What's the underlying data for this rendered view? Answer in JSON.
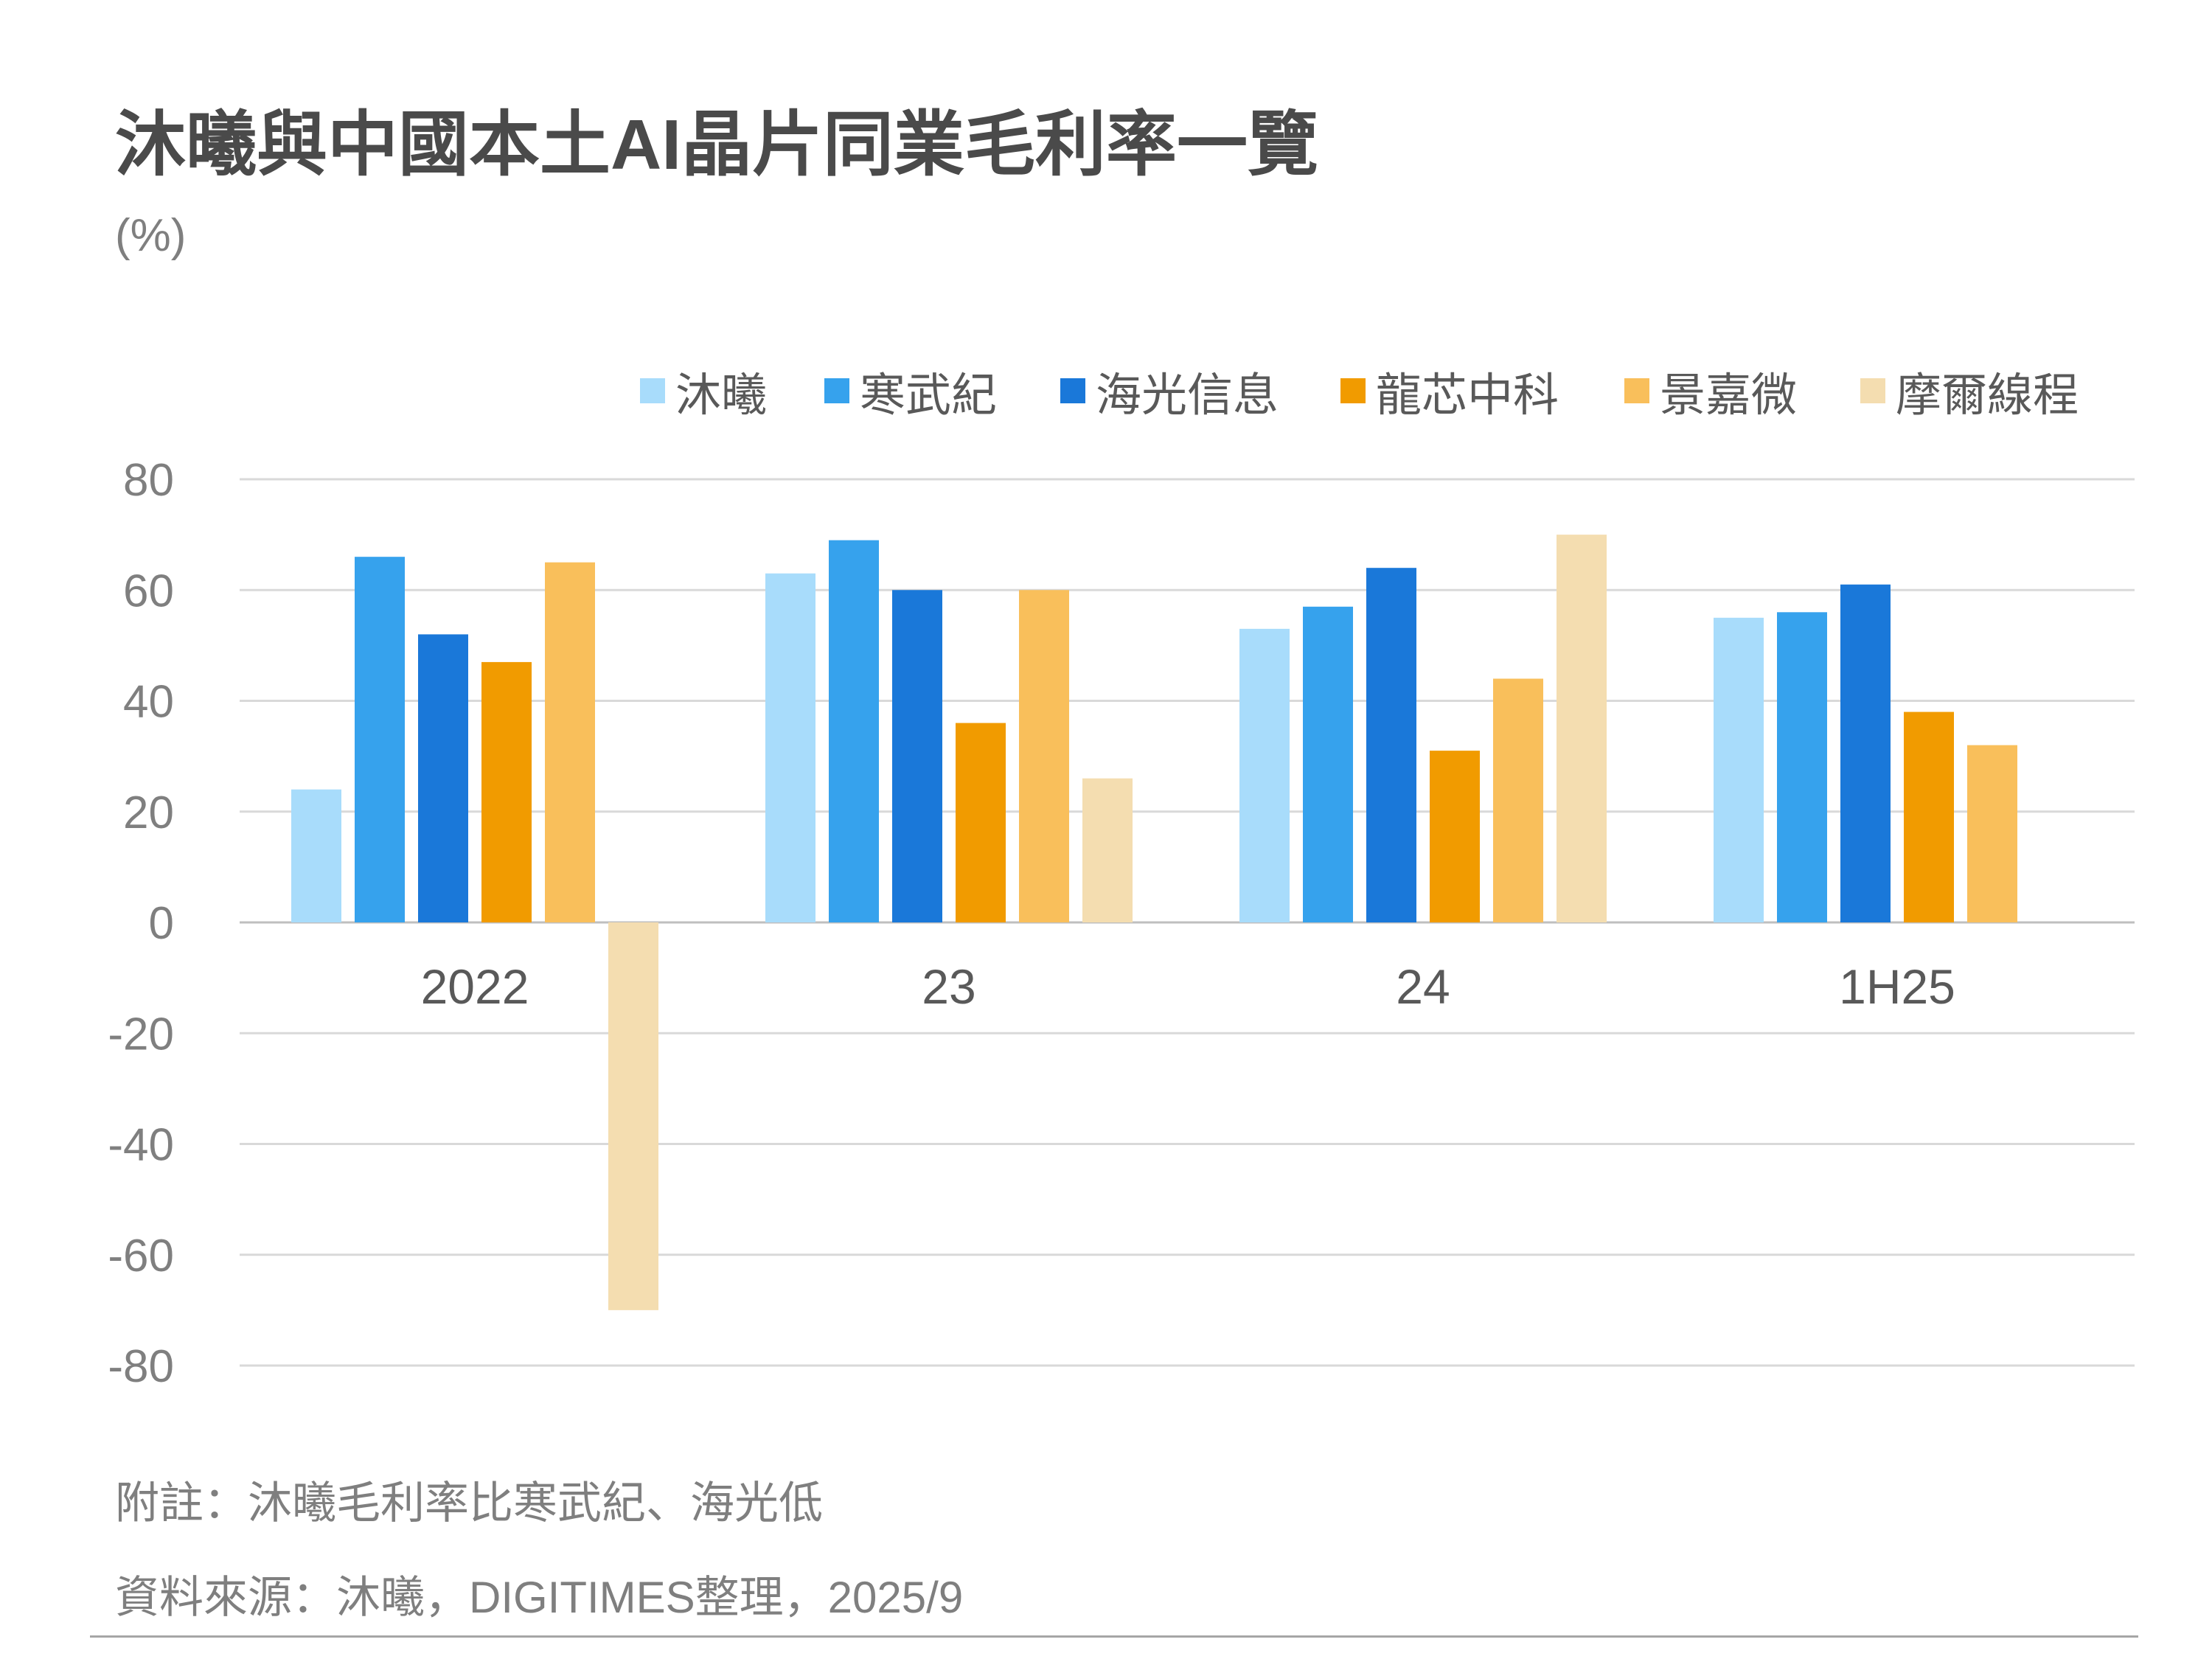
{
  "chart_data": {
    "type": "bar",
    "title": "沐曦與中國本土AI晶片同業毛利率一覽",
    "unit": "(%)",
    "categories": [
      "2022",
      "23",
      "24",
      "1H25"
    ],
    "series": [
      {
        "name": "沐曦",
        "color": "#a8dcfb",
        "values": [
          24,
          63,
          53,
          55
        ]
      },
      {
        "name": "寒武紀",
        "color": "#36a2ed",
        "values": [
          66,
          69,
          57,
          56
        ]
      },
      {
        "name": "海光信息",
        "color": "#1a78d9",
        "values": [
          52,
          60,
          64,
          61
        ]
      },
      {
        "name": "龍芯中科",
        "color": "#f19b00",
        "values": [
          47,
          36,
          31,
          38
        ]
      },
      {
        "name": "景嘉微",
        "color": "#f9bf5b",
        "values": [
          65,
          60,
          44,
          32
        ]
      },
      {
        "name": "摩爾線程",
        "color": "#f4ddb0",
        "values": [
          -70,
          26,
          70,
          null
        ]
      }
    ],
    "ylim": [
      -80,
      80
    ],
    "yticks": [
      80,
      60,
      40,
      20,
      0,
      -20,
      -40,
      -60,
      -80
    ],
    "grid": true,
    "legend_position": "top-right"
  },
  "footnote": "附註：沐曦毛利率比寒武紀、海光低",
  "source": "資料來源：沐曦，DIGITIMES整理，2025/9"
}
